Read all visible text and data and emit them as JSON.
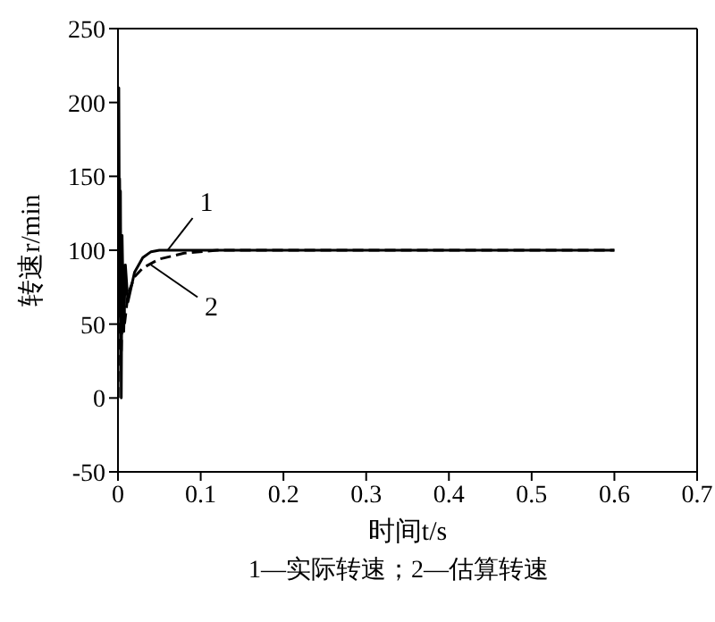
{
  "chart_data": {
    "type": "line",
    "xlabel": "时间t/s",
    "ylabel": "转速r/min",
    "xlim": [
      0,
      0.7
    ],
    "xticks": [
      0,
      0.1,
      0.2,
      0.3,
      0.4,
      0.5,
      0.6,
      0.7
    ],
    "ylim": [
      -50,
      250
    ],
    "yticks": [
      -50,
      0,
      50,
      100,
      150,
      200,
      250
    ],
    "marker": "none",
    "series": [
      {
        "color": "#000000",
        "line_style": "solid",
        "x": [
          0,
          0.001,
          0.002,
          0.003,
          0.004,
          0.005,
          0.007,
          0.009,
          0.012,
          0.02,
          0.03,
          0.04,
          0.05,
          0.6
        ],
        "values": [
          0,
          210,
          70,
          140,
          0,
          110,
          45,
          90,
          65,
          85,
          95,
          99,
          100,
          100
        ]
      },
      {
        "color": "#000000",
        "line_style": "dashed",
        "x": [
          0,
          0.002,
          0.004,
          0.006,
          0.008,
          0.012,
          0.02,
          0.03,
          0.05,
          0.08,
          0.12,
          0.6
        ],
        "values": [
          0,
          150,
          30,
          90,
          50,
          70,
          82,
          88,
          94,
          98,
          100,
          100
        ]
      }
    ],
    "annotations": [
      {
        "text": "1",
        "x": 0.06,
        "y": 100
      },
      {
        "text": "2",
        "x": 0.04,
        "y": 90
      },
      "1—实际转速；2—估算转速"
    ]
  }
}
